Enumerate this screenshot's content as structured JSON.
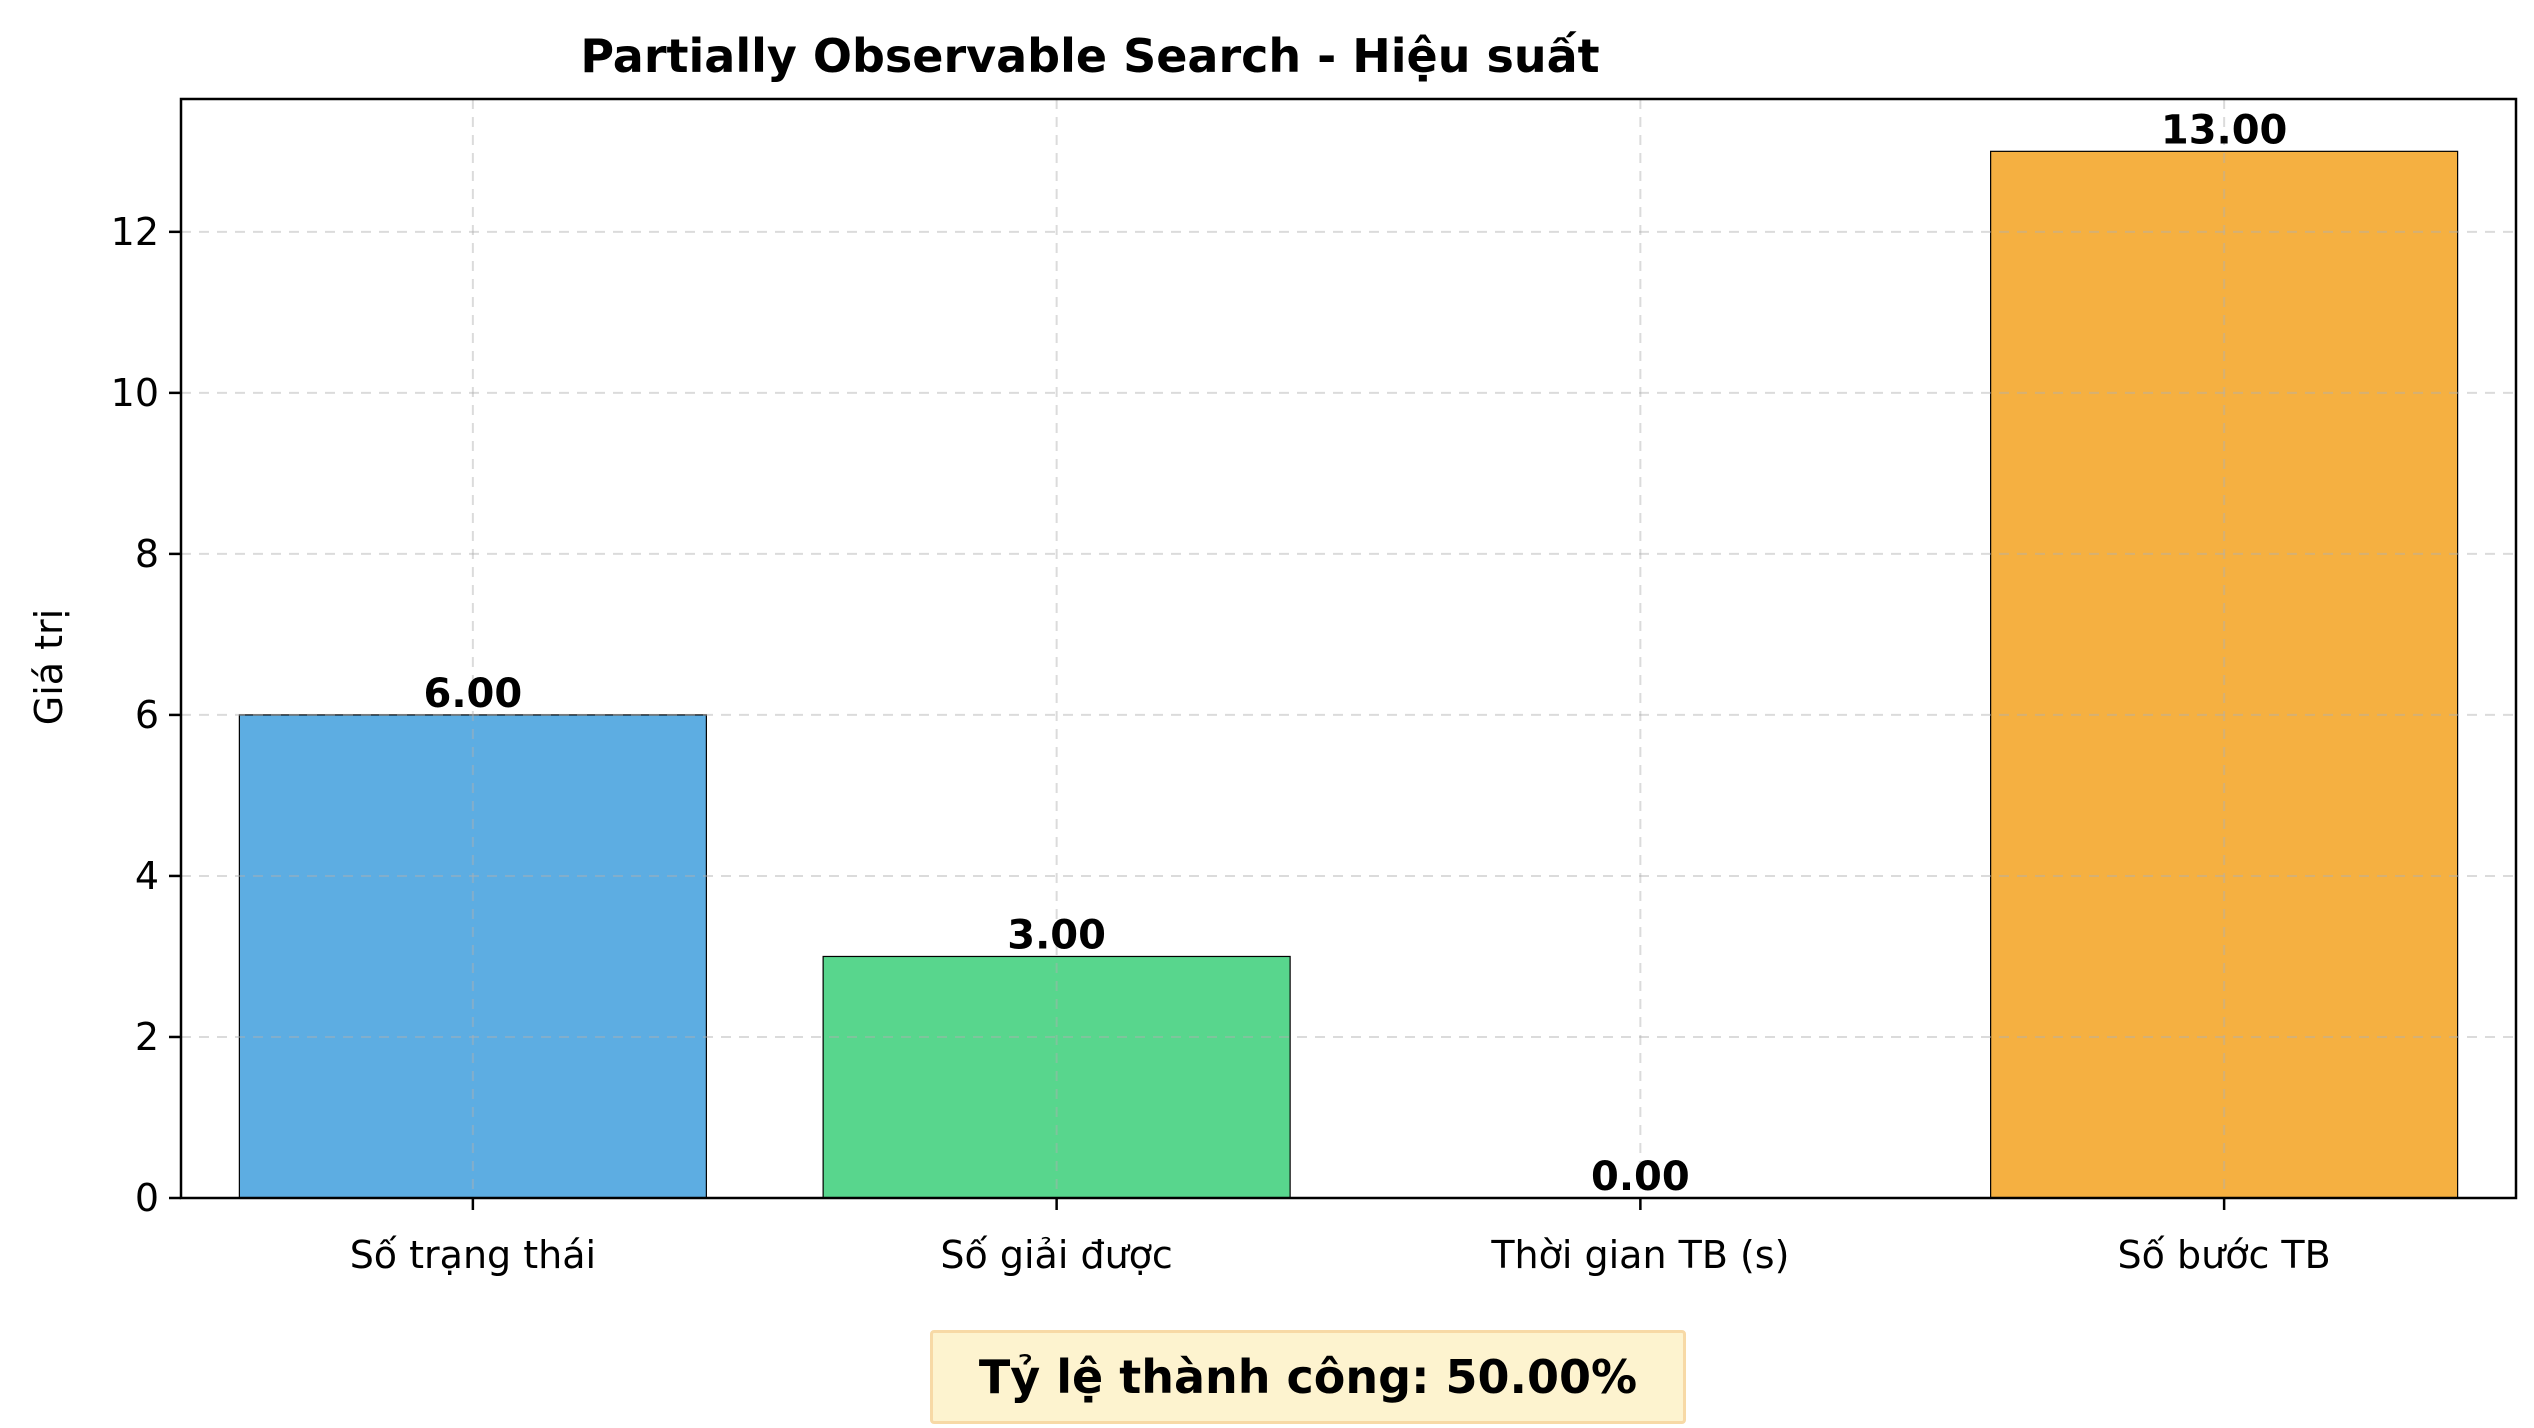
{
  "chart_data": {
    "type": "bar",
    "title": "Partially Observable Search - Hiệu suất",
    "xlabel": "",
    "ylabel": "Giá trị",
    "categories": [
      "Số trạng thái",
      "Số giải được",
      "Thời gian TB (s)",
      "Số bước TB"
    ],
    "values": [
      6.0,
      3.0,
      0.0,
      13.0
    ],
    "value_labels": [
      "6.00",
      "3.00",
      "0.00",
      "13.00"
    ],
    "colors": [
      "#5dade2",
      "#58d68d",
      "#e74c3c",
      "#f5b041"
    ],
    "yticks": [
      0,
      2,
      4,
      6,
      8,
      10,
      12
    ],
    "ylim": [
      0,
      13.65
    ],
    "grid": true,
    "legend": "none"
  },
  "footer": {
    "success_rate_text": "Tỷ lệ thành công: 50.00%"
  }
}
